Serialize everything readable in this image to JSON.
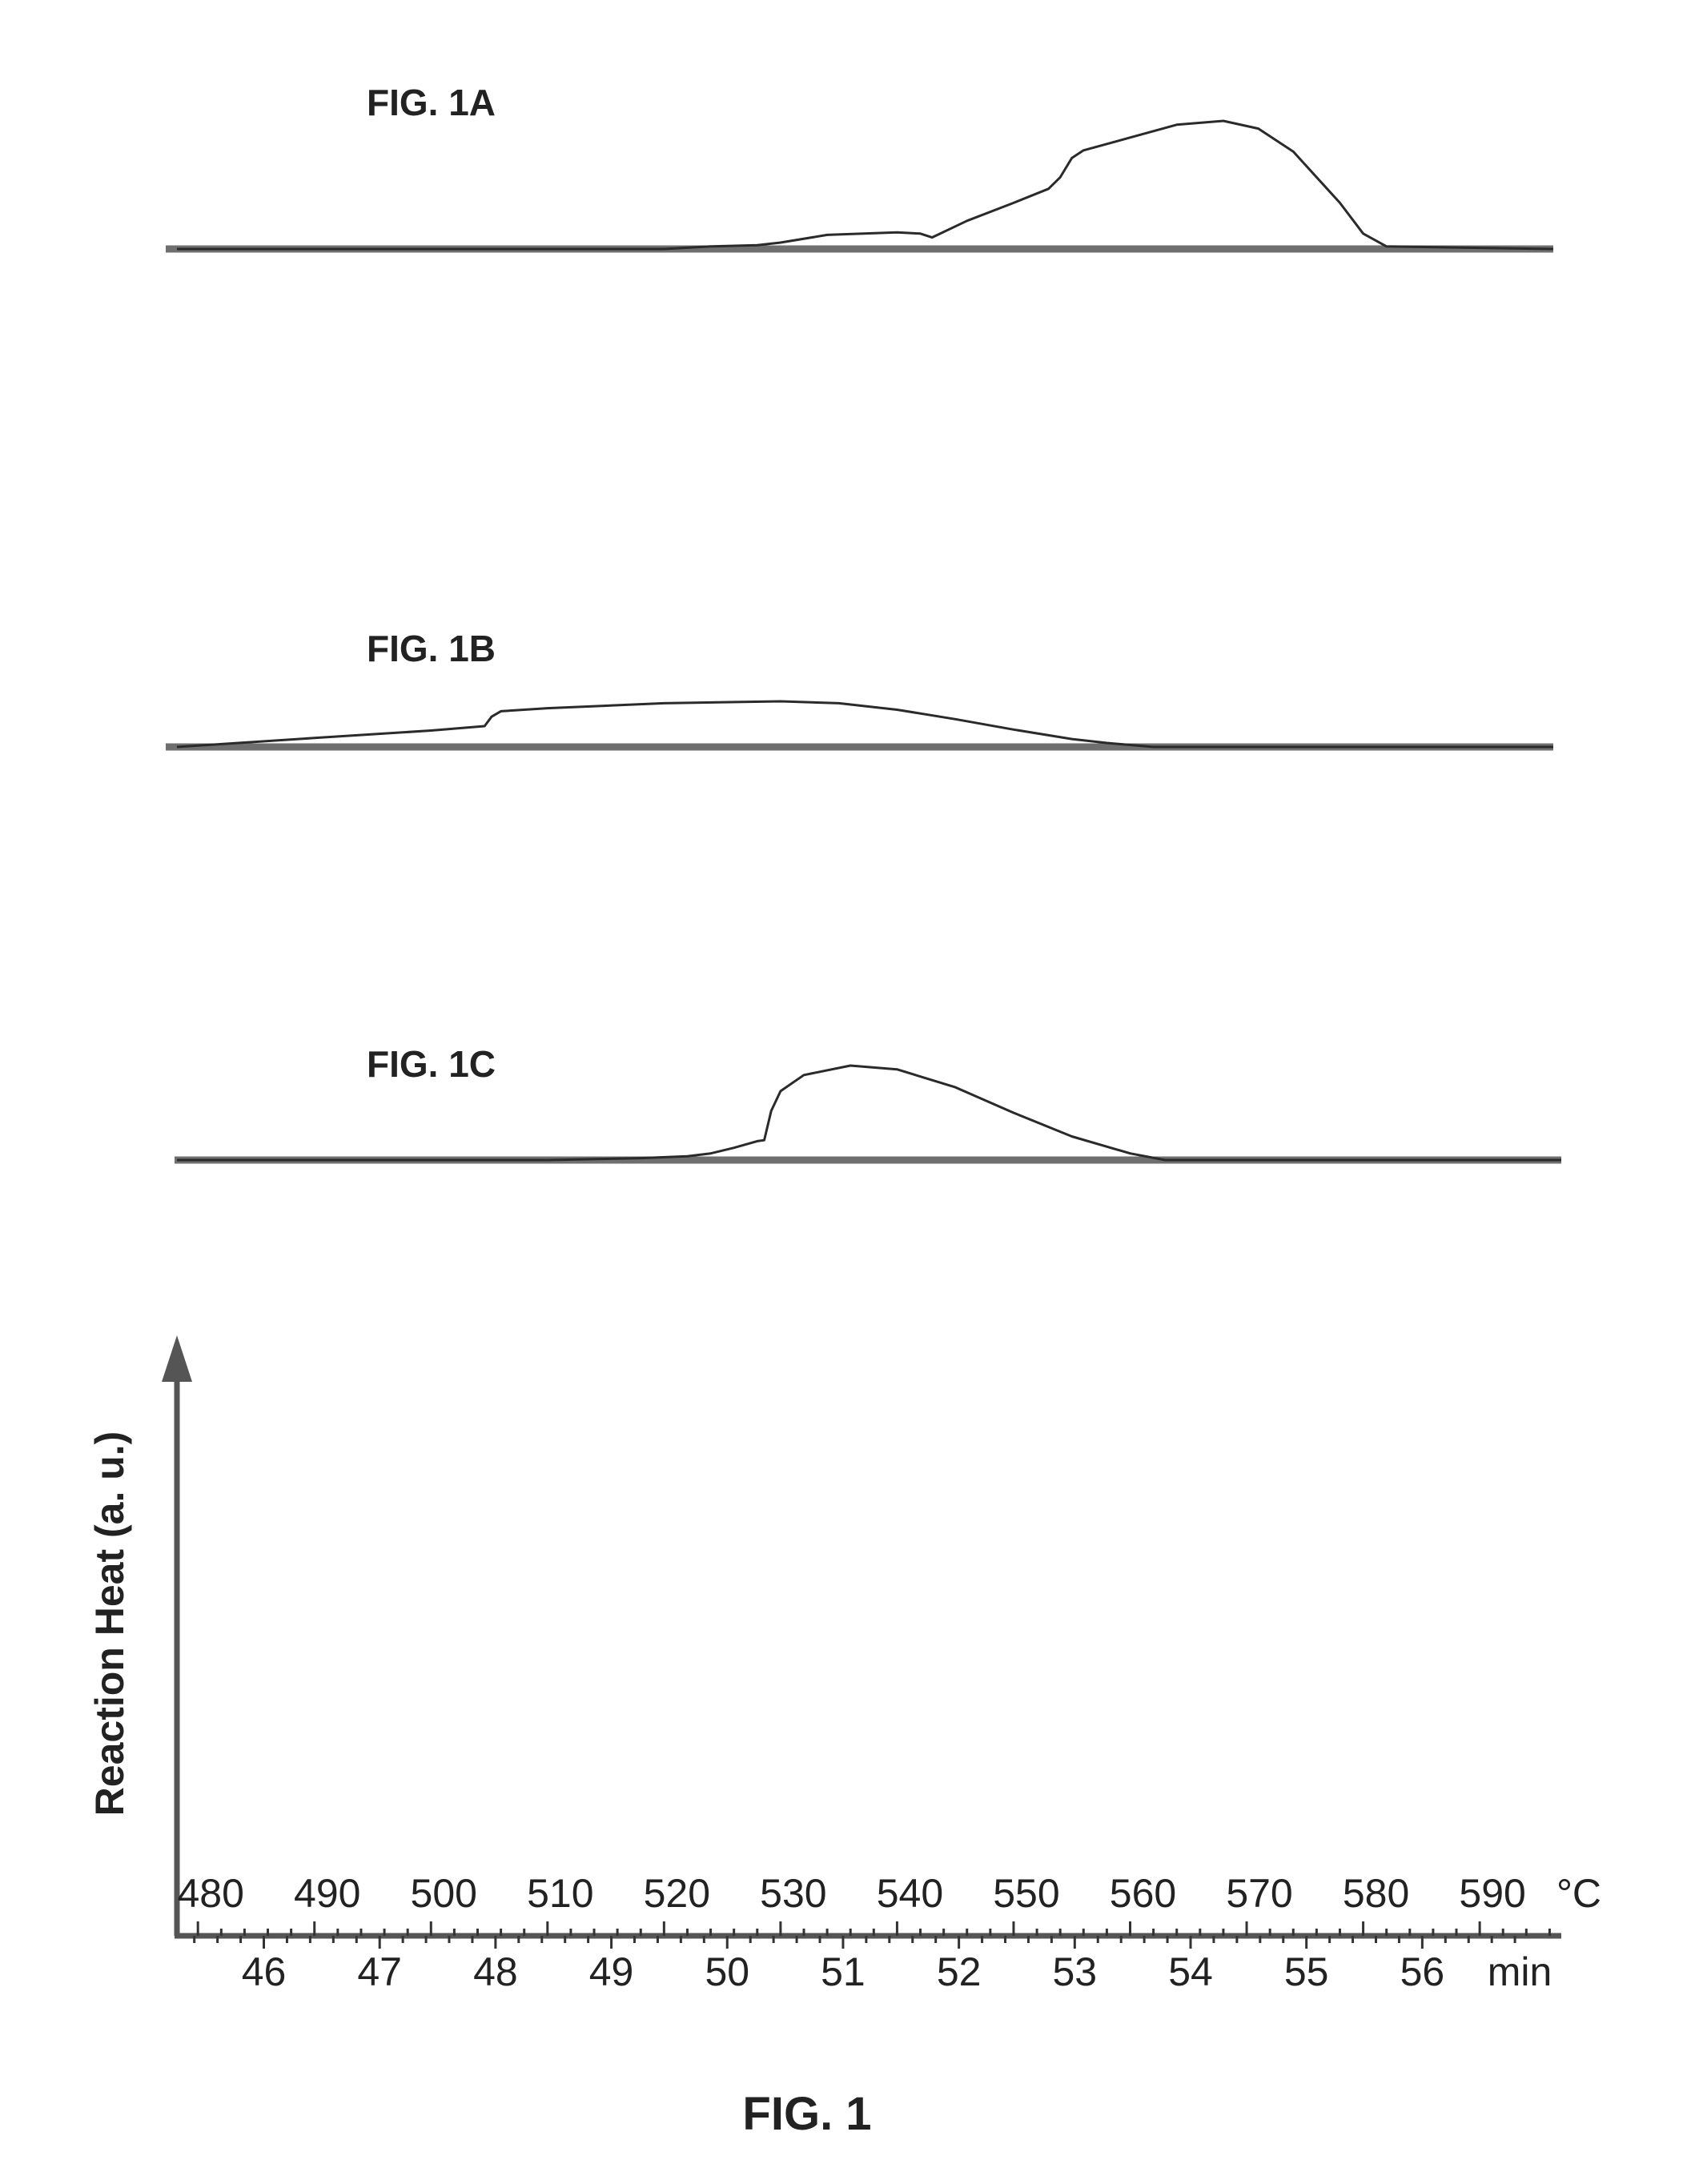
{
  "chart_data": {
    "type": "line",
    "title": "FIG. 1",
    "ylabel": "Reaction Heat (a. u.)",
    "x_axis_top": {
      "unit": "°C",
      "ticks": [
        480,
        490,
        500,
        510,
        520,
        530,
        540,
        550,
        560,
        570,
        580,
        590
      ],
      "range": [
        478.2,
        597
      ]
    },
    "x_axis_bottom": {
      "unit": "min",
      "ticks": [
        46,
        47,
        48,
        49,
        50,
        51,
        52,
        53,
        54,
        55,
        56
      ],
      "range": [
        45.25,
        57.2
      ]
    },
    "grid": false,
    "panels": [
      {
        "label": "FIG. 1A",
        "series": [
          {
            "x": [
              478.2,
              500,
              520,
              524,
              528,
              530,
              534,
              540,
              542,
              543,
              546,
              550,
              553,
              554,
              555,
              556,
              560,
              564,
              568,
              571,
              574,
              578,
              580,
              582,
              597
            ],
            "y": [
              0,
              0,
              0,
              0.02,
              0.03,
              0.05,
              0.11,
              0.13,
              0.12,
              0.09,
              0.22,
              0.36,
              0.47,
              0.56,
              0.71,
              0.77,
              0.87,
              0.97,
              1.0,
              0.94,
              0.76,
              0.36,
              0.12,
              0.02,
              0
            ]
          }
        ]
      },
      {
        "label": "FIG. 1B",
        "series": [
          {
            "x": [
              478.2,
              490,
              500,
              504.6,
              505.2,
              506,
              510,
              520,
              530,
              535,
              540,
              545,
              550,
              555,
              558,
              562,
              597
            ],
            "y": [
              0,
              0.18,
              0.33,
              0.42,
              0.61,
              0.72,
              0.78,
              0.88,
              0.92,
              0.88,
              0.75,
              0.56,
              0.35,
              0.16,
              0.08,
              0,
              0
            ]
          }
        ]
      },
      {
        "label": "FIG. 1C",
        "series": [
          {
            "x": [
              478.2,
              510,
              518,
              522,
              524,
              526,
              528,
              528.6,
              529.2,
              530,
              532,
              536,
              540,
              545,
              550,
              555,
              560,
              563,
              597
            ],
            "y": [
              0,
              0,
              0.02,
              0.04,
              0.07,
              0.13,
              0.2,
              0.21,
              0.52,
              0.73,
              0.9,
              1.0,
              0.96,
              0.77,
              0.5,
              0.25,
              0.07,
              0,
              0
            ]
          }
        ]
      }
    ]
  }
}
